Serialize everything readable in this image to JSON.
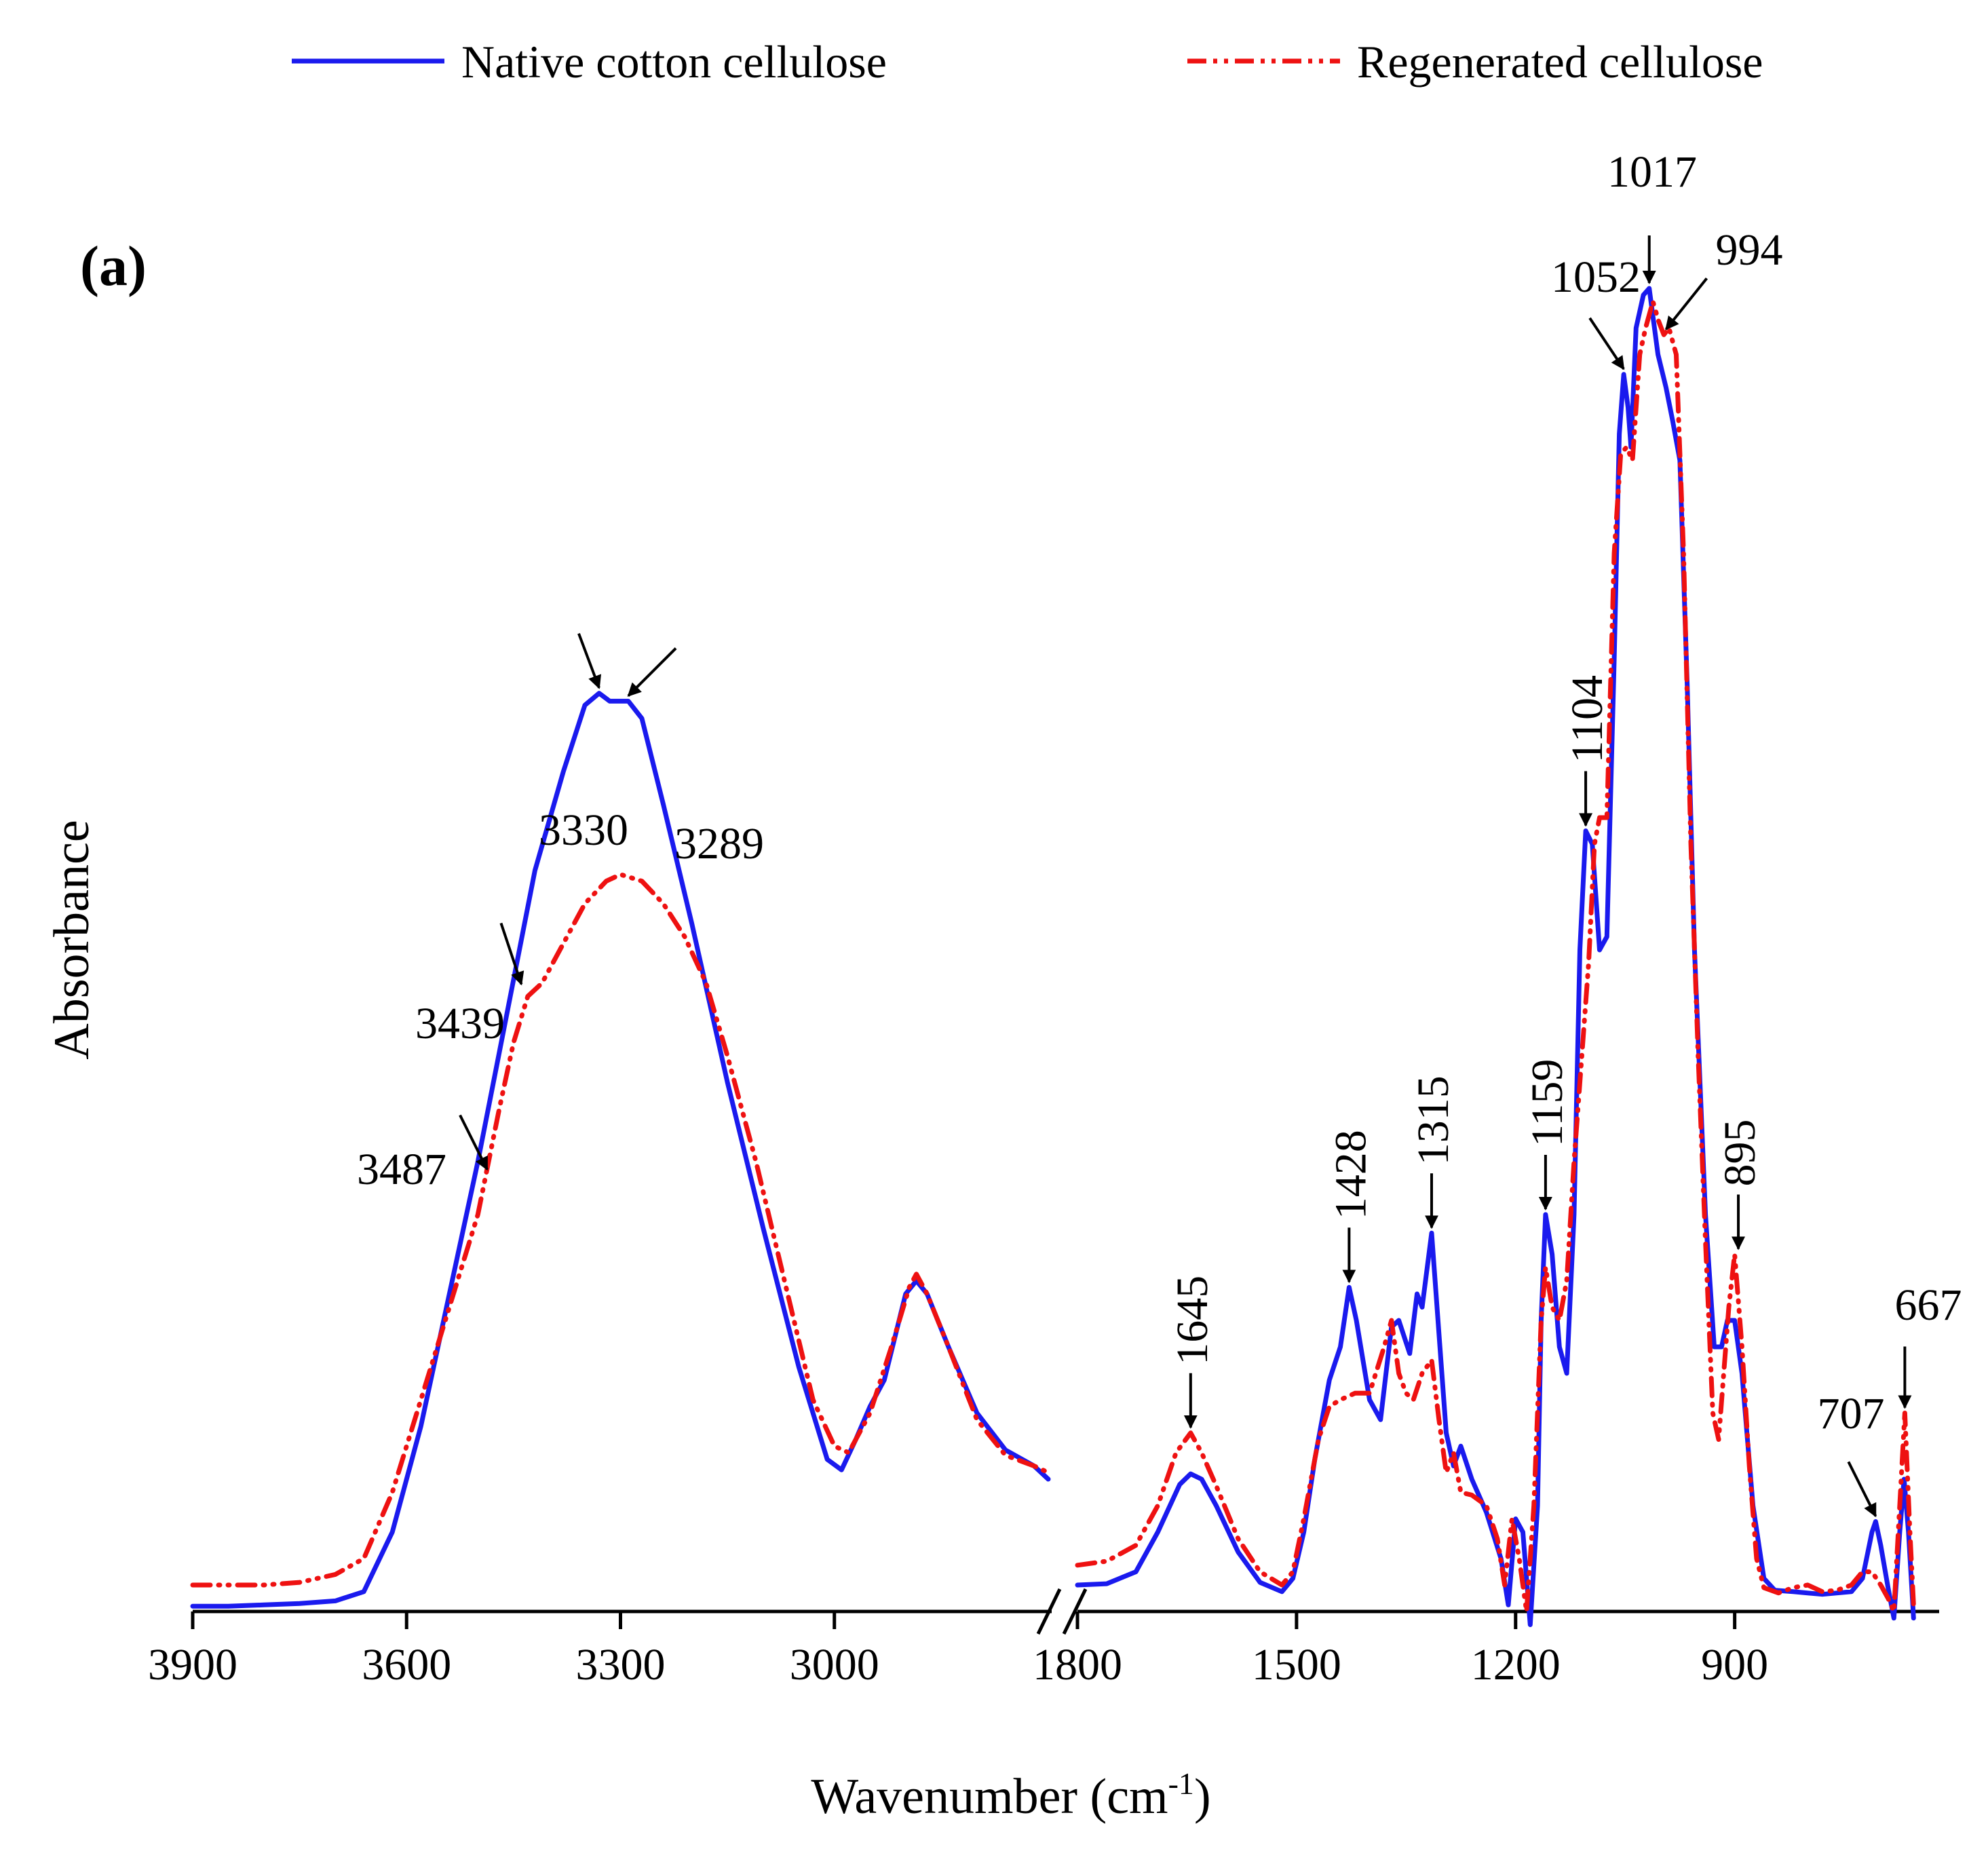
{
  "chart_data": {
    "type": "line",
    "panel_label": "(a)",
    "xlabel_main": "Wavenumber (cm",
    "xlabel_sup": "-1",
    "xlabel_close": ")",
    "ylabel": "Absorbance",
    "x_axis_reversed": true,
    "x_axis_break": [
      2700,
      1800
    ],
    "x_segments": [
      {
        "xlim": [
          3900,
          2700
        ],
        "ticks": [
          3900,
          3600,
          3300,
          3000
        ],
        "tick_labels": [
          "3900",
          "3600",
          "3300",
          "3000"
        ]
      },
      {
        "xlim": [
          1800,
          620
        ],
        "ticks": [
          1800,
          1500,
          1200,
          900
        ],
        "tick_labels": [
          "1800",
          "1500",
          "1200",
          "900"
        ]
      }
    ],
    "ylim": [
      0,
      1
    ],
    "y_ticks_shown": false,
    "legend": {
      "position": "top",
      "entries": [
        "Native cotton cellulose",
        "Regenerated cellulose"
      ]
    },
    "series": [
      {
        "name": "Native cotton cellulose",
        "color": "#1a1aee",
        "style": "solid",
        "points": [
          [
            3900,
            0.004
          ],
          [
            3850,
            0.004
          ],
          [
            3800,
            0.005
          ],
          [
            3750,
            0.006
          ],
          [
            3700,
            0.008
          ],
          [
            3660,
            0.015
          ],
          [
            3620,
            0.06
          ],
          [
            3580,
            0.14
          ],
          [
            3540,
            0.24
          ],
          [
            3500,
            0.34
          ],
          [
            3460,
            0.45
          ],
          [
            3420,
            0.56
          ],
          [
            3380,
            0.635
          ],
          [
            3350,
            0.685
          ],
          [
            3330,
            0.694
          ],
          [
            3315,
            0.688
          ],
          [
            3289,
            0.688
          ],
          [
            3270,
            0.675
          ],
          [
            3240,
            0.61
          ],
          [
            3200,
            0.52
          ],
          [
            3150,
            0.4
          ],
          [
            3100,
            0.29
          ],
          [
            3050,
            0.185
          ],
          [
            3010,
            0.115
          ],
          [
            2990,
            0.107
          ],
          [
            2970,
            0.13
          ],
          [
            2950,
            0.155
          ],
          [
            2930,
            0.175
          ],
          [
            2900,
            0.24
          ],
          [
            2885,
            0.25
          ],
          [
            2870,
            0.24
          ],
          [
            2840,
            0.2
          ],
          [
            2800,
            0.15
          ],
          [
            2760,
            0.122
          ],
          [
            2720,
            0.11
          ],
          [
            2700,
            0.1
          ]
        ]
      },
      {
        "name": "Native cotton cellulose",
        "color": "#1a1aee",
        "style": "solid",
        "points": [
          [
            1800,
            0.02
          ],
          [
            1760,
            0.021
          ],
          [
            1720,
            0.03
          ],
          [
            1690,
            0.06
          ],
          [
            1660,
            0.096
          ],
          [
            1645,
            0.104
          ],
          [
            1630,
            0.1
          ],
          [
            1610,
            0.08
          ],
          [
            1580,
            0.045
          ],
          [
            1550,
            0.022
          ],
          [
            1520,
            0.015
          ],
          [
            1505,
            0.025
          ],
          [
            1490,
            0.06
          ],
          [
            1475,
            0.115
          ],
          [
            1455,
            0.175
          ],
          [
            1440,
            0.2
          ],
          [
            1428,
            0.245
          ],
          [
            1418,
            0.22
          ],
          [
            1400,
            0.16
          ],
          [
            1385,
            0.145
          ],
          [
            1370,
            0.215
          ],
          [
            1360,
            0.22
          ],
          [
            1345,
            0.195
          ],
          [
            1335,
            0.24
          ],
          [
            1328,
            0.23
          ],
          [
            1315,
            0.286
          ],
          [
            1305,
            0.21
          ],
          [
            1295,
            0.135
          ],
          [
            1285,
            0.11
          ],
          [
            1275,
            0.125
          ],
          [
            1260,
            0.1
          ],
          [
            1240,
            0.075
          ],
          [
            1220,
            0.04
          ],
          [
            1210,
            0.005
          ],
          [
            1200,
            0.07
          ],
          [
            1190,
            0.06
          ],
          [
            1180,
            -0.01
          ],
          [
            1170,
            0.08
          ],
          [
            1165,
            0.22
          ],
          [
            1159,
            0.3
          ],
          [
            1150,
            0.27
          ],
          [
            1140,
            0.2
          ],
          [
            1130,
            0.18
          ],
          [
            1120,
            0.3
          ],
          [
            1112,
            0.5
          ],
          [
            1104,
            0.59
          ],
          [
            1095,
            0.58
          ],
          [
            1085,
            0.5
          ],
          [
            1075,
            0.51
          ],
          [
            1065,
            0.72
          ],
          [
            1058,
            0.89
          ],
          [
            1052,
            0.935
          ],
          [
            1046,
            0.91
          ],
          [
            1042,
            0.88
          ],
          [
            1035,
            0.97
          ],
          [
            1025,
            0.995
          ],
          [
            1017,
            1.0
          ],
          [
            1005,
            0.95
          ],
          [
            994,
            0.925
          ],
          [
            985,
            0.9
          ],
          [
            975,
            0.87
          ],
          [
            965,
            0.7
          ],
          [
            955,
            0.5
          ],
          [
            940,
            0.3
          ],
          [
            928,
            0.2
          ],
          [
            918,
            0.2
          ],
          [
            910,
            0.22
          ],
          [
            900,
            0.22
          ],
          [
            890,
            0.18
          ],
          [
            875,
            0.08
          ],
          [
            860,
            0.025
          ],
          [
            845,
            0.016
          ],
          [
            820,
            0.015
          ],
          [
            780,
            0.013
          ],
          [
            740,
            0.015
          ],
          [
            725,
            0.025
          ],
          [
            712,
            0.06
          ],
          [
            707,
            0.068
          ],
          [
            700,
            0.05
          ],
          [
            690,
            0.018
          ],
          [
            682,
            -0.005
          ],
          [
            674,
            0.06
          ],
          [
            668,
            0.1
          ],
          [
            662,
            0.06
          ],
          [
            655,
            -0.005
          ]
        ]
      },
      {
        "name": "Regenerated cellulose",
        "color": "#ee1111",
        "style": "dash-dot-dot",
        "points": [
          [
            3900,
            0.02
          ],
          [
            3850,
            0.02
          ],
          [
            3800,
            0.02
          ],
          [
            3750,
            0.022
          ],
          [
            3700,
            0.028
          ],
          [
            3660,
            0.04
          ],
          [
            3620,
            0.09
          ],
          [
            3580,
            0.16
          ],
          [
            3540,
            0.23
          ],
          [
            3500,
            0.3
          ],
          [
            3470,
            0.38
          ],
          [
            3450,
            0.43
          ],
          [
            3430,
            0.465
          ],
          [
            3410,
            0.475
          ],
          [
            3380,
            0.505
          ],
          [
            3350,
            0.535
          ],
          [
            3320,
            0.552
          ],
          [
            3300,
            0.557
          ],
          [
            3270,
            0.552
          ],
          [
            3240,
            0.535
          ],
          [
            3210,
            0.51
          ],
          [
            3180,
            0.475
          ],
          [
            3150,
            0.42
          ],
          [
            3110,
            0.34
          ],
          [
            3070,
            0.25
          ],
          [
            3030,
            0.16
          ],
          [
            3000,
            0.125
          ],
          [
            2980,
            0.12
          ],
          [
            2950,
            0.15
          ],
          [
            2920,
            0.2
          ],
          [
            2895,
            0.245
          ],
          [
            2885,
            0.255
          ],
          [
            2870,
            0.24
          ],
          [
            2840,
            0.2
          ],
          [
            2800,
            0.145
          ],
          [
            2760,
            0.118
          ],
          [
            2720,
            0.11
          ],
          [
            2700,
            0.105
          ]
        ]
      },
      {
        "name": "Regenerated cellulose",
        "color": "#ee1111",
        "style": "dash-dot-dot",
        "points": [
          [
            1800,
            0.035
          ],
          [
            1760,
            0.038
          ],
          [
            1720,
            0.05
          ],
          [
            1690,
            0.08
          ],
          [
            1665,
            0.12
          ],
          [
            1645,
            0.135
          ],
          [
            1630,
            0.12
          ],
          [
            1610,
            0.095
          ],
          [
            1580,
            0.055
          ],
          [
            1550,
            0.03
          ],
          [
            1520,
            0.02
          ],
          [
            1505,
            0.03
          ],
          [
            1490,
            0.07
          ],
          [
            1470,
            0.13
          ],
          [
            1455,
            0.155
          ],
          [
            1440,
            0.16
          ],
          [
            1420,
            0.165
          ],
          [
            1400,
            0.165
          ],
          [
            1380,
            0.2
          ],
          [
            1370,
            0.22
          ],
          [
            1360,
            0.18
          ],
          [
            1350,
            0.165
          ],
          [
            1340,
            0.16
          ],
          [
            1328,
            0.18
          ],
          [
            1315,
            0.19
          ],
          [
            1305,
            0.145
          ],
          [
            1295,
            0.105
          ],
          [
            1285,
            0.12
          ],
          [
            1275,
            0.09
          ],
          [
            1260,
            0.088
          ],
          [
            1240,
            0.08
          ],
          [
            1225,
            0.055
          ],
          [
            1215,
            0.02
          ],
          [
            1205,
            0.07
          ],
          [
            1195,
            0.04
          ],
          [
            1185,
            0.0
          ],
          [
            1175,
            0.08
          ],
          [
            1165,
            0.22
          ],
          [
            1159,
            0.26
          ],
          [
            1150,
            0.23
          ],
          [
            1140,
            0.22
          ],
          [
            1130,
            0.25
          ],
          [
            1120,
            0.34
          ],
          [
            1108,
            0.43
          ],
          [
            1100,
            0.49
          ],
          [
            1092,
            0.58
          ],
          [
            1085,
            0.6
          ],
          [
            1075,
            0.6
          ],
          [
            1065,
            0.8
          ],
          [
            1056,
            0.875
          ],
          [
            1048,
            0.88
          ],
          [
            1040,
            0.87
          ],
          [
            1030,
            0.95
          ],
          [
            1022,
            0.97
          ],
          [
            1012,
            0.99
          ],
          [
            1004,
            0.975
          ],
          [
            997,
            0.965
          ],
          [
            990,
            0.97
          ],
          [
            980,
            0.95
          ],
          [
            970,
            0.8
          ],
          [
            960,
            0.58
          ],
          [
            950,
            0.42
          ],
          [
            940,
            0.28
          ],
          [
            930,
            0.15
          ],
          [
            922,
            0.13
          ],
          [
            915,
            0.18
          ],
          [
            908,
            0.23
          ],
          [
            900,
            0.27
          ],
          [
            890,
            0.2
          ],
          [
            880,
            0.11
          ],
          [
            870,
            0.04
          ],
          [
            860,
            0.018
          ],
          [
            840,
            0.014
          ],
          [
            820,
            0.018
          ],
          [
            800,
            0.02
          ],
          [
            780,
            0.015
          ],
          [
            760,
            0.016
          ],
          [
            740,
            0.02
          ],
          [
            725,
            0.03
          ],
          [
            712,
            0.03
          ],
          [
            700,
            0.02
          ],
          [
            690,
            0.01
          ],
          [
            682,
            0.0
          ],
          [
            674,
            0.08
          ],
          [
            667,
            0.15
          ],
          [
            660,
            0.06
          ],
          [
            655,
            0.005
          ]
        ]
      }
    ],
    "annotations": [
      {
        "label": "3330",
        "target": [
          3330,
          0.694
        ],
        "orientation": "horizontal",
        "arrow": "diagonal"
      },
      {
        "label": "3289",
        "target": [
          3289,
          0.688
        ],
        "orientation": "horizontal",
        "arrow": "diagonal"
      },
      {
        "label": "3439",
        "target": [
          3439,
          0.47
        ],
        "orientation": "horizontal",
        "arrow": "diagonal"
      },
      {
        "label": "3487",
        "target": [
          3487,
          0.33
        ],
        "orientation": "horizontal",
        "arrow": "diagonal"
      },
      {
        "label": "1645",
        "target": [
          1645,
          0.135
        ],
        "orientation": "vertical",
        "arrow": "down"
      },
      {
        "label": "1428",
        "target": [
          1428,
          0.245
        ],
        "orientation": "vertical",
        "arrow": "down"
      },
      {
        "label": "1315",
        "target": [
          1315,
          0.286
        ],
        "orientation": "vertical",
        "arrow": "down"
      },
      {
        "label": "1159",
        "target": [
          1159,
          0.3
        ],
        "orientation": "vertical",
        "arrow": "down"
      },
      {
        "label": "1104",
        "target": [
          1104,
          0.59
        ],
        "orientation": "vertical",
        "arrow": "down"
      },
      {
        "label": "1052",
        "target": [
          1052,
          0.935
        ],
        "orientation": "horizontal",
        "arrow": "diagonal"
      },
      {
        "label": "1017",
        "target": [
          1017,
          1.0
        ],
        "orientation": "horizontal",
        "arrow": "down"
      },
      {
        "label": "994",
        "target": [
          994,
          0.965
        ],
        "orientation": "horizontal",
        "arrow": "diagonal"
      },
      {
        "label": "895",
        "target": [
          895,
          0.27
        ],
        "orientation": "vertical",
        "arrow": "down"
      },
      {
        "label": "707",
        "target": [
          707,
          0.068
        ],
        "orientation": "horizontal",
        "arrow": "diagonal"
      },
      {
        "label": "667",
        "target": [
          667,
          0.15
        ],
        "orientation": "horizontal",
        "arrow": "down"
      }
    ]
  }
}
